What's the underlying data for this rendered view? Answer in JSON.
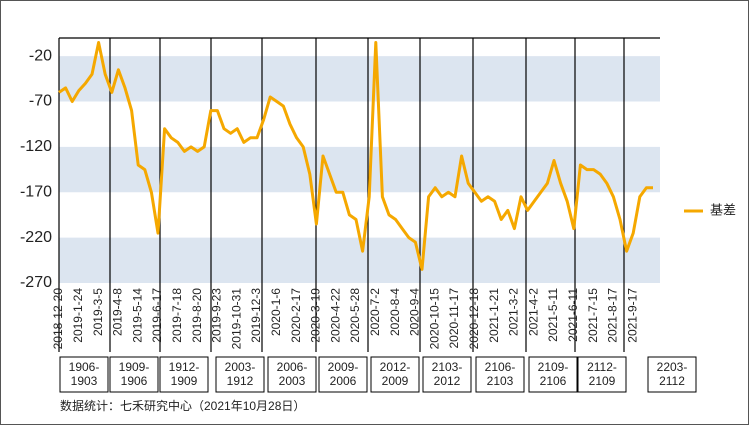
{
  "chart_data": {
    "type": "line",
    "categories": [
      "2018-12-20",
      null,
      null,
      "2019-1-24",
      null,
      null,
      "2019-3-5",
      null,
      null,
      "2019-4-8",
      null,
      null,
      "2019-5-14",
      null,
      null,
      "2019-6-17",
      null,
      null,
      "2019-7-18",
      null,
      null,
      "2019-8-20",
      null,
      null,
      "2019-9-23",
      null,
      null,
      "2019-10-31",
      null,
      null,
      "2019-12-3",
      null,
      null,
      "2020-1-6",
      null,
      null,
      "2020-2-17",
      null,
      null,
      "2020-3-19",
      null,
      null,
      "2020-4-22",
      null,
      null,
      "2020-5-28",
      null,
      null,
      "2020-7-2",
      null,
      null,
      "2020-8-4",
      null,
      null,
      "2020-9-4",
      null,
      null,
      "2020-10-15",
      null,
      null,
      "2020-11-17",
      null,
      null,
      "2020-12-18",
      null,
      null,
      "2021-1-21",
      null,
      null,
      "2021-3-2",
      null,
      null,
      "2021-4-2",
      null,
      null,
      "2021-5-11",
      null,
      null,
      "2021-6-11",
      null,
      null,
      "2021-7-15",
      null,
      null,
      "2021-8-17",
      null,
      null,
      "2021-9-17",
      null,
      null,
      null
    ],
    "series": [
      {
        "name": "基差",
        "color": "#f5a800",
        "values": [
          -60,
          -55,
          -70,
          -58,
          -50,
          -40,
          -5,
          -40,
          -60,
          -35,
          -55,
          -80,
          -140,
          -145,
          -170,
          -215,
          -100,
          -110,
          -115,
          -125,
          -120,
          -125,
          -120,
          -80,
          -80,
          -100,
          -105,
          -100,
          -115,
          -110,
          -110,
          -90,
          -65,
          -70,
          -75,
          -95,
          -110,
          -120,
          -150,
          -205,
          -130,
          -150,
          -170,
          -170,
          -195,
          -200,
          -235,
          -175,
          -5,
          -175,
          -195,
          -200,
          -210,
          -220,
          -225,
          -255,
          -175,
          -165,
          -175,
          -170,
          -175,
          -130,
          -160,
          -170,
          -180,
          -175,
          -180,
          -200,
          -190,
          -210,
          -175,
          -190,
          -180,
          -170,
          -160,
          -135,
          -160,
          -180,
          -210,
          -140,
          -145,
          -145,
          -150,
          -160,
          -175,
          -200,
          -235,
          -215,
          -175,
          -165,
          -165
        ]
      }
    ],
    "ylim": [
      -270,
      0
    ],
    "yticks": [
      -20,
      -70,
      -120,
      -170,
      -220,
      -270
    ],
    "bands": true,
    "legend": "right",
    "annotations": [
      [
        "1906-",
        "1903"
      ],
      [
        "1909-",
        "1906"
      ],
      [
        "1912-",
        "1909"
      ],
      [
        "2003-",
        "1912"
      ],
      [
        "2006-",
        "2003"
      ],
      [
        "2009-",
        "2006"
      ],
      [
        "2012-",
        "2009"
      ],
      [
        "2103-",
        "2012"
      ],
      [
        "2106-",
        "2103"
      ],
      [
        "2109-",
        "2106"
      ],
      [
        "2112-",
        "2109"
      ],
      [
        "2203-",
        "2112"
      ]
    ],
    "source": "数据统计：七禾研究中心（2021年10月28日）"
  }
}
